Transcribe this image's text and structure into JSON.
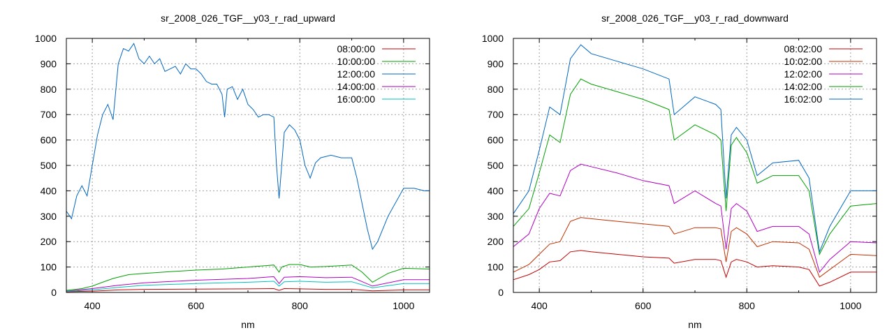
{
  "chart_data": [
    {
      "type": "line",
      "title": "sr_2008_026_TGF__y03_r_rad_upward",
      "xlabel": "nm",
      "ylabel": "",
      "xlim": [
        350,
        1050
      ],
      "ylim": [
        0,
        1000
      ],
      "xticks": [
        400,
        600,
        800,
        1000
      ],
      "yticks": [
        0,
        100,
        200,
        300,
        400,
        500,
        600,
        700,
        800,
        900,
        1000
      ],
      "grid": true,
      "legend_position": "top-right",
      "series": [
        {
          "name": "08:00:00",
          "color": "#c00000",
          "x": [
            350,
            400,
            450,
            500,
            600,
            700,
            750,
            760,
            770,
            800,
            850,
            900,
            940,
            1000,
            1050
          ],
          "y": [
            3,
            5,
            10,
            12,
            13,
            14,
            15,
            8,
            15,
            14,
            12,
            12,
            6,
            10,
            10
          ]
        },
        {
          "name": "10:00:00",
          "color": "#00a000",
          "x": [
            350,
            380,
            400,
            420,
            440,
            470,
            500,
            550,
            600,
            650,
            700,
            750,
            760,
            765,
            780,
            800,
            820,
            850,
            900,
            920,
            940,
            970,
            1000,
            1050
          ],
          "y": [
            8,
            15,
            25,
            40,
            55,
            70,
            75,
            82,
            88,
            92,
            100,
            108,
            80,
            100,
            110,
            110,
            100,
            102,
            108,
            80,
            40,
            75,
            95,
            92
          ]
        },
        {
          "name": "12:00:00",
          "color": "#0066c0",
          "x": [
            350,
            360,
            370,
            380,
            390,
            400,
            410,
            420,
            430,
            440,
            450,
            460,
            470,
            480,
            490,
            500,
            510,
            520,
            530,
            540,
            550,
            560,
            570,
            580,
            590,
            600,
            610,
            620,
            630,
            640,
            650,
            655,
            660,
            670,
            680,
            690,
            700,
            710,
            720,
            730,
            740,
            750,
            755,
            760,
            765,
            770,
            780,
            790,
            800,
            810,
            820,
            830,
            840,
            860,
            880,
            900,
            910,
            920,
            930,
            940,
            950,
            970,
            1000,
            1020,
            1040,
            1050
          ],
          "y": [
            320,
            290,
            380,
            420,
            380,
            500,
            620,
            700,
            740,
            680,
            900,
            960,
            950,
            980,
            920,
            900,
            930,
            900,
            920,
            870,
            880,
            890,
            860,
            900,
            880,
            880,
            860,
            830,
            820,
            820,
            780,
            690,
            800,
            810,
            760,
            800,
            740,
            720,
            690,
            700,
            700,
            690,
            500,
            370,
            500,
            630,
            660,
            640,
            600,
            500,
            450,
            510,
            530,
            540,
            530,
            530,
            450,
            350,
            250,
            170,
            200,
            300,
            410,
            410,
            400,
            400
          ]
        },
        {
          "name": "14:00:00",
          "color": "#b000c0",
          "x": [
            350,
            400,
            450,
            500,
            600,
            700,
            750,
            760,
            770,
            800,
            850,
            900,
            940,
            1000,
            1050
          ],
          "y": [
            5,
            15,
            28,
            38,
            48,
            55,
            62,
            35,
            60,
            62,
            58,
            60,
            25,
            50,
            50
          ]
        },
        {
          "name": "16:00:00",
          "color": "#00c0c0",
          "x": [
            350,
            400,
            450,
            500,
            600,
            700,
            750,
            760,
            770,
            800,
            850,
            900,
            940,
            1000,
            1050
          ],
          "y": [
            4,
            10,
            20,
            28,
            35,
            40,
            44,
            25,
            42,
            44,
            40,
            42,
            18,
            35,
            35
          ]
        }
      ]
    },
    {
      "type": "line",
      "title": "sr_2008_026_TGF__y03_r_rad_downward",
      "xlabel": "nm",
      "ylabel": "",
      "xlim": [
        350,
        1050
      ],
      "ylim": [
        0,
        1000
      ],
      "xticks": [
        400,
        600,
        800,
        1000
      ],
      "yticks": [
        0,
        100,
        200,
        300,
        400,
        500,
        600,
        700,
        800,
        900,
        1000
      ],
      "grid": true,
      "legend_position": "top-right",
      "series": [
        {
          "name": "08:02:00",
          "color": "#c00000",
          "x": [
            350,
            380,
            400,
            420,
            440,
            460,
            480,
            500,
            550,
            600,
            650,
            660,
            700,
            740,
            750,
            760,
            770,
            780,
            800,
            820,
            850,
            900,
            920,
            940,
            960,
            1000,
            1050
          ],
          "y": [
            50,
            70,
            90,
            120,
            125,
            160,
            165,
            160,
            150,
            140,
            135,
            115,
            130,
            130,
            125,
            60,
            120,
            130,
            120,
            100,
            105,
            100,
            90,
            25,
            40,
            80,
            80
          ]
        },
        {
          "name": "10:02:00",
          "color": "#c03000",
          "x": [
            350,
            380,
            400,
            420,
            440,
            460,
            480,
            500,
            550,
            600,
            650,
            660,
            700,
            740,
            750,
            760,
            770,
            780,
            800,
            820,
            850,
            900,
            920,
            940,
            960,
            1000,
            1050
          ],
          "y": [
            80,
            110,
            150,
            190,
            200,
            280,
            295,
            290,
            280,
            270,
            260,
            230,
            255,
            255,
            250,
            120,
            240,
            255,
            230,
            180,
            200,
            195,
            170,
            60,
            90,
            150,
            145
          ]
        },
        {
          "name": "12:02:00",
          "color": "#b000c0",
          "x": [
            350,
            380,
            400,
            420,
            440,
            460,
            480,
            500,
            550,
            600,
            650,
            660,
            700,
            740,
            750,
            760,
            770,
            780,
            800,
            820,
            850,
            900,
            920,
            940,
            960,
            1000,
            1050
          ],
          "y": [
            180,
            230,
            330,
            390,
            380,
            480,
            505,
            495,
            470,
            440,
            420,
            350,
            400,
            350,
            340,
            170,
            330,
            350,
            320,
            240,
            260,
            260,
            230,
            80,
            130,
            200,
            195
          ]
        },
        {
          "name": "14:02:00",
          "color": "#00a000",
          "x": [
            350,
            380,
            400,
            420,
            440,
            460,
            480,
            500,
            550,
            600,
            650,
            660,
            700,
            740,
            750,
            760,
            770,
            780,
            800,
            820,
            850,
            900,
            920,
            940,
            960,
            1000,
            1050
          ],
          "y": [
            260,
            330,
            470,
            620,
            590,
            780,
            840,
            820,
            790,
            760,
            720,
            600,
            660,
            620,
            600,
            320,
            580,
            610,
            550,
            430,
            460,
            460,
            400,
            150,
            230,
            340,
            350
          ]
        },
        {
          "name": "16:02:00",
          "color": "#0066c0",
          "x": [
            350,
            380,
            400,
            420,
            440,
            460,
            480,
            500,
            550,
            600,
            650,
            660,
            700,
            740,
            750,
            760,
            770,
            780,
            800,
            820,
            850,
            900,
            920,
            940,
            960,
            1000,
            1050
          ],
          "y": [
            310,
            400,
            560,
            730,
            700,
            920,
            975,
            940,
            910,
            880,
            840,
            700,
            770,
            740,
            720,
            370,
            620,
            650,
            600,
            460,
            510,
            520,
            450,
            160,
            260,
            400,
            400
          ]
        }
      ]
    }
  ]
}
